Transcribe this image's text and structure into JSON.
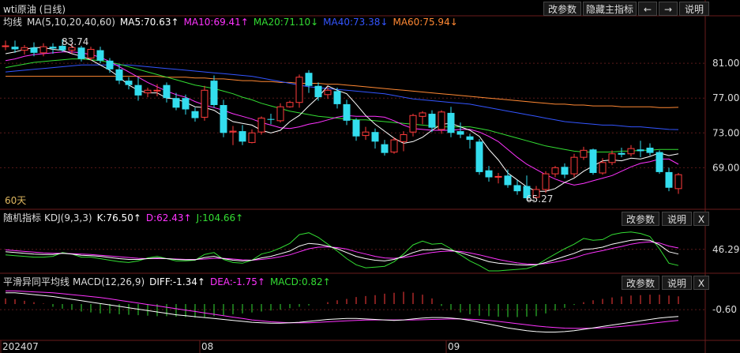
{
  "window": {
    "title": "wti原油 (日线)"
  },
  "toolbar": {
    "modify": "改参数",
    "hide_main": "隐藏主指标",
    "left": "←",
    "right": "→",
    "help": "说明"
  },
  "main_panel": {
    "ma_label": "均线",
    "ma_params": "MA(5,10,20,40,60)",
    "ma5": "MA5:70.63↑",
    "ma10": "MA10:69.41↑",
    "ma20": "MA20:71.10↓",
    "ma40": "MA40:73.38↓",
    "ma60": "MA60:75.94↓",
    "period_note": "60天",
    "high_label": "83.74",
    "low_label": "65.27"
  },
  "kdj_panel": {
    "name": "随机指标",
    "params": "KDJ(9,3,3)",
    "k": "K:76.50↑",
    "d": "D:62.43↑",
    "j": "J:104.66↑",
    "modify": "改参数",
    "help": "说明",
    "close": "X"
  },
  "macd_panel": {
    "name": "平滑异同平均线",
    "params": "MACD(12,26,9)",
    "diff": "DIFF:-1.34↑",
    "dea": "DEA:-1.75↑",
    "macd": "MACD:0.82↑",
    "modify": "改参数",
    "help": "说明",
    "close": "X"
  },
  "colors": {
    "up": "#ff3b3b",
    "down": "#33ddee",
    "ma5": "#ffffff",
    "ma10": "#ff33ff",
    "ma20": "#33dd33",
    "ma40": "#3355ff",
    "ma60": "#ff8833",
    "date": "#dddddd"
  },
  "chart_data": [
    {
      "type": "candlestick",
      "title": "wti原油 (日线)",
      "x_tick_labels": [
        "202407",
        "08",
        "09"
      ],
      "y_tick_labels": [
        "81.00",
        "77.00",
        "73.00",
        "69.00"
      ],
      "ylim": [
        64.5,
        85
      ],
      "candles": [
        [
          83.0,
          83.0,
          83.6,
          82.5
        ],
        [
          82.9,
          82.6,
          83.6,
          82.2
        ],
        [
          82.5,
          82.8,
          83.1,
          82.0
        ],
        [
          82.8,
          82.2,
          83.4,
          81.8
        ],
        [
          82.2,
          82.9,
          83.3,
          81.8
        ],
        [
          82.9,
          82.7,
          83.3,
          82.1
        ],
        [
          83.0,
          82.5,
          83.74,
          82.3
        ],
        [
          82.5,
          82.8,
          83.3,
          82.1
        ],
        [
          82.8,
          81.5,
          83.0,
          81.2
        ],
        [
          81.6,
          82.6,
          82.9,
          81.3
        ],
        [
          82.5,
          81.3,
          82.9,
          81.0
        ],
        [
          81.3,
          80.3,
          81.6,
          79.9
        ],
        [
          80.3,
          79.0,
          80.8,
          78.6
        ],
        [
          79.0,
          78.5,
          79.4,
          78.0
        ],
        [
          78.5,
          77.3,
          79.4,
          76.7
        ],
        [
          77.6,
          77.9,
          78.2,
          77.1
        ],
        [
          77.9,
          77.9,
          78.6,
          77.2
        ],
        [
          78.5,
          77.0,
          78.8,
          76.5
        ],
        [
          77.0,
          75.9,
          77.6,
          75.6
        ],
        [
          77.0,
          75.7,
          77.4,
          75.1
        ],
        [
          75.5,
          74.7,
          75.9,
          74.3
        ],
        [
          74.8,
          77.9,
          78.4,
          74.4
        ],
        [
          79.0,
          76.2,
          79.6,
          75.9
        ],
        [
          76.2,
          73.0,
          76.8,
          72.5
        ],
        [
          73.1,
          73.2,
          73.8,
          71.6
        ],
        [
          73.2,
          72.0,
          73.9,
          71.6
        ],
        [
          71.9,
          73.0,
          73.4,
          71.8
        ],
        [
          73.1,
          74.7,
          74.9,
          72.8
        ],
        [
          74.6,
          74.5,
          75.2,
          74.0
        ],
        [
          74.4,
          76.0,
          76.4,
          74.2
        ],
        [
          76.0,
          76.5,
          76.7,
          75.9
        ],
        [
          76.5,
          79.4,
          79.7,
          75.9
        ],
        [
          79.9,
          78.4,
          80.2,
          77.6
        ],
        [
          78.4,
          77.1,
          78.8,
          76.7
        ],
        [
          77.4,
          77.9,
          78.3,
          76.9
        ],
        [
          77.8,
          76.3,
          78.2,
          75.8
        ],
        [
          76.3,
          74.4,
          76.8,
          73.9
        ],
        [
          74.5,
          72.6,
          74.7,
          72.1
        ],
        [
          72.7,
          73.1,
          73.7,
          72.2
        ],
        [
          73.1,
          72.0,
          73.5,
          71.2
        ],
        [
          71.7,
          70.7,
          72.2,
          70.4
        ],
        [
          70.8,
          72.2,
          72.5,
          70.6
        ],
        [
          72.0,
          72.8,
          73.2,
          70.9
        ],
        [
          73.1,
          75.0,
          75.2,
          72.6
        ],
        [
          74.9,
          75.3,
          75.5,
          74.0
        ],
        [
          75.2,
          73.6,
          75.6,
          73.1
        ],
        [
          73.4,
          75.4,
          75.6,
          72.9
        ],
        [
          75.3,
          73.0,
          76.0,
          72.5
        ],
        [
          73.2,
          72.8,
          74.2,
          72.4
        ],
        [
          72.6,
          72.2,
          72.9,
          71.2
        ],
        [
          72.0,
          68.5,
          72.3,
          68.2
        ],
        [
          68.7,
          67.9,
          69.2,
          67.4
        ],
        [
          68.0,
          68.0,
          68.4,
          67.2
        ],
        [
          68.1,
          67.0,
          68.8,
          66.7
        ],
        [
          67.0,
          66.3,
          67.6,
          65.9
        ],
        [
          66.9,
          65.5,
          68.1,
          65.27
        ],
        [
          65.6,
          66.5,
          66.9,
          65.4
        ],
        [
          66.5,
          68.3,
          68.6,
          66.1
        ],
        [
          68.3,
          69.0,
          69.2,
          67.9
        ],
        [
          69.1,
          68.2,
          69.5,
          67.8
        ],
        [
          68.3,
          70.2,
          70.6,
          67.9
        ],
        [
          70.2,
          71.0,
          71.4,
          69.9
        ],
        [
          71.1,
          68.4,
          71.2,
          68.2
        ],
        [
          68.4,
          69.6,
          70.1,
          68.2
        ],
        [
          69.6,
          70.6,
          71.0,
          69.3
        ],
        [
          70.7,
          70.5,
          71.3,
          70.2
        ],
        [
          70.6,
          71.2,
          71.6,
          70.3
        ],
        [
          71.1,
          70.9,
          72.1,
          70.2
        ],
        [
          71.3,
          70.7,
          71.8,
          70.4
        ],
        [
          70.8,
          68.5,
          71.0,
          68.3
        ],
        [
          68.5,
          66.7,
          69.0,
          66.3
        ],
        [
          66.6,
          68.2,
          68.4,
          66.0
        ]
      ],
      "ma5": [
        82.1,
        82.3,
        82.6,
        82.8,
        82.8,
        82.6,
        82.5,
        82.1,
        81.8,
        81.4,
        80.8,
        80.2,
        79.4,
        78.5,
        77.9,
        77.6,
        77.6,
        77.0,
        76.9,
        76.5,
        76.0,
        75.9,
        75.6,
        74.9,
        74.3,
        74.1,
        73.9,
        73.3,
        73.0,
        73.3,
        74.3,
        75.0,
        76.1,
        77.1,
        78.4,
        77.9,
        77.5,
        76.3,
        75.0,
        74.0,
        73.2,
        72.4,
        71.8,
        72.0,
        72.5,
        73.3,
        74.0,
        74.1,
        73.7,
        73.3,
        72.6,
        71.1,
        69.9,
        68.4,
        67.6,
        66.8,
        66.3,
        66.3,
        66.6,
        67.3,
        67.8,
        68.6,
        69.2,
        69.8,
        69.9,
        69.8,
        70.1,
        70.0,
        70.3,
        70.7,
        70.4,
        70.6
      ],
      "ma10": [
        81.3,
        81.5,
        81.8,
        82.0,
        82.1,
        82.2,
        82.3,
        82.3,
        82.2,
        82.0,
        81.7,
        81.2,
        80.6,
        80.0,
        79.4,
        78.8,
        78.3,
        77.8,
        77.4,
        77.1,
        76.6,
        76.2,
        75.9,
        75.6,
        75.2,
        74.9,
        74.6,
        74.2,
        73.9,
        73.6,
        73.5,
        73.7,
        74.0,
        74.2,
        74.5,
        74.8,
        75.0,
        74.9,
        74.9,
        74.9,
        74.8,
        74.4,
        73.9,
        73.5,
        73.4,
        73.3,
        73.3,
        73.3,
        73.4,
        73.4,
        73.1,
        72.6,
        72.0,
        71.1,
        70.2,
        69.4,
        68.8,
        68.2,
        67.7,
        67.3,
        67.0,
        67.2,
        67.5,
        67.8,
        68.1,
        68.6,
        69.1,
        69.5,
        69.7,
        70.0,
        70.0,
        69.4
      ],
      "ma20": [
        80.5,
        80.7,
        80.9,
        81.1,
        81.2,
        81.3,
        81.4,
        81.5,
        81.5,
        81.4,
        81.3,
        81.1,
        80.9,
        80.6,
        80.3,
        80.0,
        79.7,
        79.4,
        79.1,
        78.8,
        78.5,
        78.3,
        78.1,
        77.8,
        77.5,
        77.1,
        76.8,
        76.4,
        76.1,
        75.8,
        75.5,
        75.3,
        75.1,
        74.9,
        74.8,
        74.7,
        74.6,
        74.5,
        74.5,
        74.4,
        74.3,
        74.2,
        74.1,
        74.0,
        73.9,
        73.8,
        73.7,
        73.7,
        73.7,
        73.7,
        73.5,
        73.3,
        73.0,
        72.7,
        72.4,
        72.1,
        71.8,
        71.5,
        71.3,
        71.1,
        70.9,
        70.8,
        70.8,
        70.8,
        70.8,
        70.9,
        70.9,
        71.0,
        71.0,
        71.1,
        71.1,
        71.1
      ],
      "ma40": [
        80.0,
        80.1,
        80.2,
        80.3,
        80.4,
        80.5,
        80.6,
        80.7,
        80.8,
        80.8,
        80.8,
        80.8,
        80.8,
        80.8,
        80.7,
        80.6,
        80.5,
        80.4,
        80.3,
        80.2,
        80.1,
        80.0,
        79.9,
        79.8,
        79.7,
        79.6,
        79.5,
        79.3,
        79.1,
        78.9,
        78.7,
        78.5,
        78.3,
        78.2,
        78.1,
        78.0,
        77.9,
        77.8,
        77.7,
        77.6,
        77.5,
        77.3,
        77.1,
        76.9,
        76.8,
        76.7,
        76.6,
        76.5,
        76.4,
        76.3,
        76.1,
        75.9,
        75.7,
        75.5,
        75.3,
        75.1,
        74.9,
        74.7,
        74.5,
        74.3,
        74.2,
        74.1,
        74.0,
        73.9,
        73.9,
        73.8,
        73.7,
        73.7,
        73.6,
        73.5,
        73.4,
        73.38
      ],
      "ma60": [
        79.5,
        79.5,
        79.5,
        79.5,
        79.5,
        79.5,
        79.5,
        79.5,
        79.5,
        79.5,
        79.5,
        79.5,
        79.5,
        79.5,
        79.5,
        79.5,
        79.5,
        79.4,
        79.4,
        79.4,
        79.3,
        79.3,
        79.2,
        79.2,
        79.1,
        79.0,
        79.0,
        78.9,
        78.9,
        78.8,
        78.8,
        78.7,
        78.7,
        78.7,
        78.6,
        78.6,
        78.5,
        78.4,
        78.3,
        78.2,
        78.1,
        78.0,
        77.9,
        77.8,
        77.7,
        77.6,
        77.5,
        77.4,
        77.3,
        77.2,
        77.1,
        77.0,
        76.9,
        76.8,
        76.7,
        76.6,
        76.5,
        76.4,
        76.3,
        76.3,
        76.2,
        76.2,
        76.1,
        76.1,
        76.1,
        76.0,
        76.0,
        76.0,
        76.0,
        75.9,
        75.9,
        75.94
      ]
    },
    {
      "type": "line",
      "title": "KDJ(9,3,3)",
      "y_tick_labels": [
        "46.29"
      ],
      "ylim": [
        -10,
        110
      ],
      "k": [
        40,
        38,
        36,
        34,
        33,
        33,
        36,
        34,
        31,
        30,
        28,
        25,
        22,
        20,
        20,
        22,
        24,
        22,
        20,
        19,
        19,
        25,
        28,
        22,
        18,
        16,
        18,
        24,
        28,
        35,
        42,
        55,
        62,
        60,
        55,
        48,
        38,
        28,
        22,
        18,
        16,
        20,
        28,
        38,
        45,
        45,
        48,
        44,
        38,
        30,
        22,
        14,
        10,
        8,
        6,
        5,
        6,
        12,
        20,
        28,
        36,
        46,
        48,
        52,
        60,
        65,
        70,
        72,
        70,
        58,
        40,
        34
      ],
      "d": [
        45,
        43,
        41,
        39,
        37,
        36,
        36,
        35,
        34,
        33,
        31,
        29,
        27,
        25,
        23,
        22,
        22,
        22,
        21,
        20,
        20,
        21,
        23,
        23,
        21,
        19,
        18,
        20,
        23,
        27,
        32,
        40,
        48,
        52,
        53,
        51,
        47,
        40,
        34,
        28,
        24,
        23,
        25,
        29,
        34,
        38,
        41,
        42,
        41,
        37,
        32,
        26,
        20,
        15,
        11,
        8,
        7,
        9,
        13,
        18,
        24,
        32,
        38,
        43,
        49,
        54,
        60,
        64,
        66,
        63,
        55,
        50
      ],
      "j": [
        32,
        30,
        28,
        26,
        26,
        28,
        38,
        34,
        26,
        26,
        22,
        18,
        14,
        12,
        16,
        24,
        28,
        22,
        16,
        16,
        18,
        33,
        38,
        20,
        12,
        10,
        18,
        34,
        40,
        50,
        62,
        85,
        90,
        78,
        60,
        42,
        22,
        6,
        -2,
        0,
        2,
        14,
        34,
        58,
        68,
        60,
        62,
        48,
        32,
        16,
        4,
        -10,
        -10,
        -8,
        -6,
        -4,
        4,
        20,
        34,
        48,
        60,
        75,
        70,
        72,
        85,
        90,
        92,
        88,
        80,
        48,
        10,
        4
      ]
    },
    {
      "type": "bar+line",
      "title": "MACD(12,26,9)",
      "x_tick_labels": [
        "202407",
        "08",
        "09"
      ],
      "y_tick_labels": [
        "-0.60"
      ],
      "ylim": [
        -3.8,
        1.6
      ],
      "macd_hist": [
        0.6,
        0.5,
        0.35,
        0.2,
        0.05,
        -0.3,
        -0.5,
        -0.6,
        -0.8,
        -0.9,
        -1.0,
        -1.0,
        -1.1,
        -1.15,
        -1.2,
        -1.25,
        -1.3,
        -1.3,
        -1.35,
        -1.4,
        -1.45,
        -1.4,
        -1.3,
        -1.2,
        -1.1,
        -1.0,
        -0.9,
        -0.8,
        -0.7,
        -0.6,
        -0.45,
        -0.3,
        -0.15,
        0.0,
        0.2,
        0.4,
        0.55,
        0.75,
        0.85,
        0.95,
        1.1,
        1.2,
        1.3,
        1.2,
        1.0,
        0.6,
        -0.2,
        -0.6,
        -0.9,
        -1.1,
        -1.25,
        -1.3,
        -1.35,
        -1.4,
        -1.4,
        -1.35,
        -1.3,
        -1.0,
        -0.7,
        -0.4,
        -0.1,
        0.2,
        0.4,
        0.55,
        0.7,
        0.8,
        0.9,
        0.95,
        1.0,
        1.0,
        0.9,
        0.82
      ],
      "diff": [
        1.2,
        1.2,
        1.1,
        1.0,
        0.9,
        0.8,
        0.65,
        0.5,
        0.35,
        0.2,
        0.05,
        -0.1,
        -0.25,
        -0.4,
        -0.55,
        -0.7,
        -0.85,
        -1.0,
        -1.15,
        -1.25,
        -1.35,
        -1.45,
        -1.55,
        -1.65,
        -1.75,
        -1.85,
        -1.95,
        -2.0,
        -2.05,
        -2.05,
        -2.0,
        -1.95,
        -1.85,
        -1.75,
        -1.65,
        -1.6,
        -1.55,
        -1.55,
        -1.6,
        -1.65,
        -1.7,
        -1.75,
        -1.7,
        -1.6,
        -1.5,
        -1.45,
        -1.45,
        -1.5,
        -1.6,
        -1.75,
        -1.95,
        -2.15,
        -2.35,
        -2.55,
        -2.7,
        -2.85,
        -2.95,
        -3.0,
        -3.0,
        -2.95,
        -2.85,
        -2.7,
        -2.55,
        -2.4,
        -2.25,
        -2.1,
        -1.95,
        -1.8,
        -1.65,
        -1.5,
        -1.4,
        -1.34
      ],
      "dea": [
        1.4,
        1.4,
        1.35,
        1.3,
        1.25,
        1.2,
        1.1,
        1.0,
        0.9,
        0.8,
        0.7,
        0.55,
        0.4,
        0.25,
        0.1,
        -0.05,
        -0.2,
        -0.35,
        -0.5,
        -0.65,
        -0.8,
        -0.95,
        -1.1,
        -1.25,
        -1.4,
        -1.55,
        -1.7,
        -1.8,
        -1.9,
        -1.95,
        -2.0,
        -2.0,
        -2.0,
        -1.95,
        -1.9,
        -1.85,
        -1.8,
        -1.75,
        -1.72,
        -1.7,
        -1.7,
        -1.7,
        -1.7,
        -1.7,
        -1.68,
        -1.65,
        -1.62,
        -1.6,
        -1.6,
        -1.62,
        -1.68,
        -1.76,
        -1.86,
        -1.98,
        -2.1,
        -2.22,
        -2.34,
        -2.44,
        -2.52,
        -2.58,
        -2.6,
        -2.6,
        -2.58,
        -2.54,
        -2.48,
        -2.4,
        -2.3,
        -2.2,
        -2.08,
        -1.96,
        -1.85,
        -1.75
      ]
    }
  ]
}
